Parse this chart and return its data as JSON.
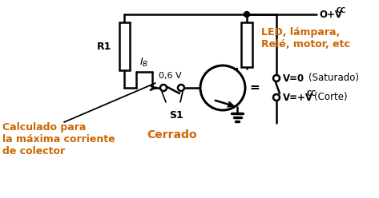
{
  "bg_color": "#ffffff",
  "line_color": "#000000",
  "orange_color": "#cc6600",
  "R1_label": "R1",
  "IB_label": "$I_B$",
  "V06_label": "0,6 V",
  "S1_label": "S1",
  "Cerrado_label": "Cerrado",
  "LED_label": "LED, lámpara,\nRelé, motor, etc",
  "calc_label": "Calculado para\nla máxima corriente\nde colector",
  "V0_line": "V=0",
  "V0_paren": "(Saturado)",
  "Vcc_line": "V=+V",
  "Vcc_sub": "CC",
  "Vcc_paren": "(Corte)",
  "VCC_prefix": "O+V",
  "VCC_sub": "CC"
}
